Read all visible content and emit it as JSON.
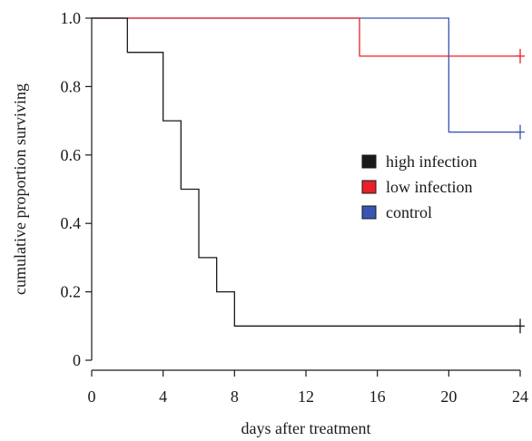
{
  "chart_data": {
    "type": "line",
    "step": true,
    "title": "",
    "xlabel": "days after treatment",
    "ylabel": "cumulative proportion surviving",
    "xlim": [
      0,
      24
    ],
    "ylim": [
      0,
      1.0
    ],
    "xticks": [
      0,
      4,
      8,
      12,
      16,
      20,
      24
    ],
    "yticks": [
      0,
      0.2,
      0.4,
      0.6,
      0.8,
      1.0
    ],
    "xtick_labels": [
      "0",
      "4",
      "8",
      "12",
      "16",
      "20",
      "24"
    ],
    "ytick_labels": [
      "0",
      "0.2",
      "0.4",
      "0.6",
      "0.8",
      "1.0"
    ],
    "grid": false,
    "legend_position": "right-middle",
    "series": [
      {
        "name": "high infection",
        "color": "#1a1a1a",
        "x": [
          0,
          2,
          4,
          5,
          6,
          7,
          8,
          24
        ],
        "y": [
          1.0,
          0.9,
          0.7,
          0.5,
          0.3,
          0.2,
          0.1,
          0.1
        ],
        "censored": [
          24
        ]
      },
      {
        "name": "low infection",
        "color": "#e8202a",
        "x": [
          0,
          15,
          24
        ],
        "y": [
          1.0,
          0.889,
          0.889
        ],
        "censored": [
          24
        ]
      },
      {
        "name": "control",
        "color": "#3a55b4",
        "x": [
          0,
          20,
          24
        ],
        "y": [
          1.0,
          0.667,
          0.667
        ],
        "censored": [
          24
        ]
      }
    ]
  }
}
